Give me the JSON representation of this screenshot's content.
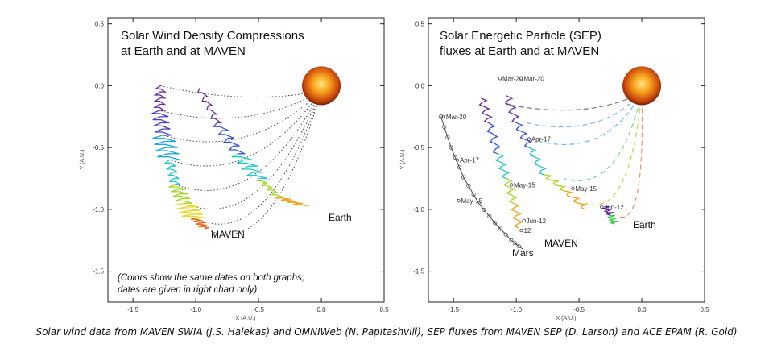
{
  "caption": "Solar wind data from MAVEN SWIA (J.S. Halekas) and OMNIWeb (N. Papitashvili), SEP fluxes from MAVEN SEP (D. Larson) and ACE EPAM (R. Gold)",
  "chart_data": [
    {
      "type": "line",
      "title_lines": [
        "Solar Wind Density Compressions",
        "at Earth and at MAVEN"
      ],
      "xlabel": "X (A.U.)",
      "ylabel": "Y (A.U.)",
      "xlim": [
        -1.7,
        0.5
      ],
      "ylim": [
        -1.75,
        0.55
      ],
      "xticks": [
        "-1.5",
        "-1.0",
        "-0.5",
        "0.0",
        "0.5"
      ],
      "yticks": [
        "0.5",
        "0.0",
        "-0.5",
        "-1.0",
        "-1.5"
      ],
      "labels": {
        "maven": "MAVEN",
        "earth": "Earth"
      },
      "note_lines": [
        "(Colors show the same dates on both graphs;",
        "dates are given in right chart only)"
      ],
      "sun": [
        0.0,
        0.0
      ],
      "maven_track": {
        "x": [
          -1.28,
          -1.29,
          -1.26,
          -1.21,
          -1.16,
          -1.09,
          -1.01,
          -0.93
        ],
        "y": [
          0.0,
          -0.2,
          -0.4,
          -0.6,
          -0.8,
          -0.95,
          -1.07,
          -1.15
        ]
      },
      "earth_track": {
        "x": [
          -0.97,
          -0.83,
          -0.66,
          -0.5,
          -0.34,
          -0.15
        ],
        "y": [
          -0.02,
          -0.3,
          -0.55,
          -0.75,
          -0.9,
          -0.97
        ]
      },
      "spiral_lines": 8
    },
    {
      "type": "line",
      "title_lines": [
        "Solar Energetic Particle (SEP)",
        "fluxes at Earth and at MAVEN"
      ],
      "xlabel": "X (A.U.)",
      "ylabel": "Y (A.U.)",
      "xlim": [
        -1.7,
        0.5
      ],
      "ylim": [
        -1.75,
        0.55
      ],
      "xticks": [
        "-1.5",
        "-1.0",
        "-0.5",
        "0.0",
        "0.5"
      ],
      "yticks": [
        "0.5",
        "0.0",
        "-0.5",
        "-1.0",
        "-1.5"
      ],
      "labels": {
        "maven": "MAVEN",
        "earth": "Earth",
        "mars": "Mars"
      },
      "sun": [
        0.0,
        0.0
      ],
      "mars_orbit": {
        "x": [
          -1.6,
          -1.52,
          -1.42,
          -1.3,
          -1.17,
          -1.04,
          -0.95
        ],
        "y": [
          -0.25,
          -0.5,
          -0.74,
          -0.95,
          -1.11,
          -1.25,
          -1.32
        ]
      },
      "dates": [
        {
          "text": "Mar-20",
          "x": -1.56,
          "y": -0.27
        },
        {
          "text": "Mar-20",
          "x": -1.11,
          "y": 0.04
        },
        {
          "text": "Mar-20",
          "x": -0.94,
          "y": 0.04
        },
        {
          "text": "Apr-17",
          "x": -1.45,
          "y": -0.62
        },
        {
          "text": "Apr-17",
          "x": -0.88,
          "y": -0.45
        },
        {
          "text": "May-15",
          "x": -1.02,
          "y": -0.82
        },
        {
          "text": "May-15",
          "x": -1.44,
          "y": -0.95
        },
        {
          "text": "May-15",
          "x": -0.53,
          "y": -0.85
        },
        {
          "text": "Jun-12",
          "x": -0.92,
          "y": -1.11
        },
        {
          "text": "Jun-12",
          "x": -0.3,
          "y": -1.0
        },
        {
          "text": "12",
          "x": -0.94,
          "y": -1.19
        }
      ]
    }
  ]
}
